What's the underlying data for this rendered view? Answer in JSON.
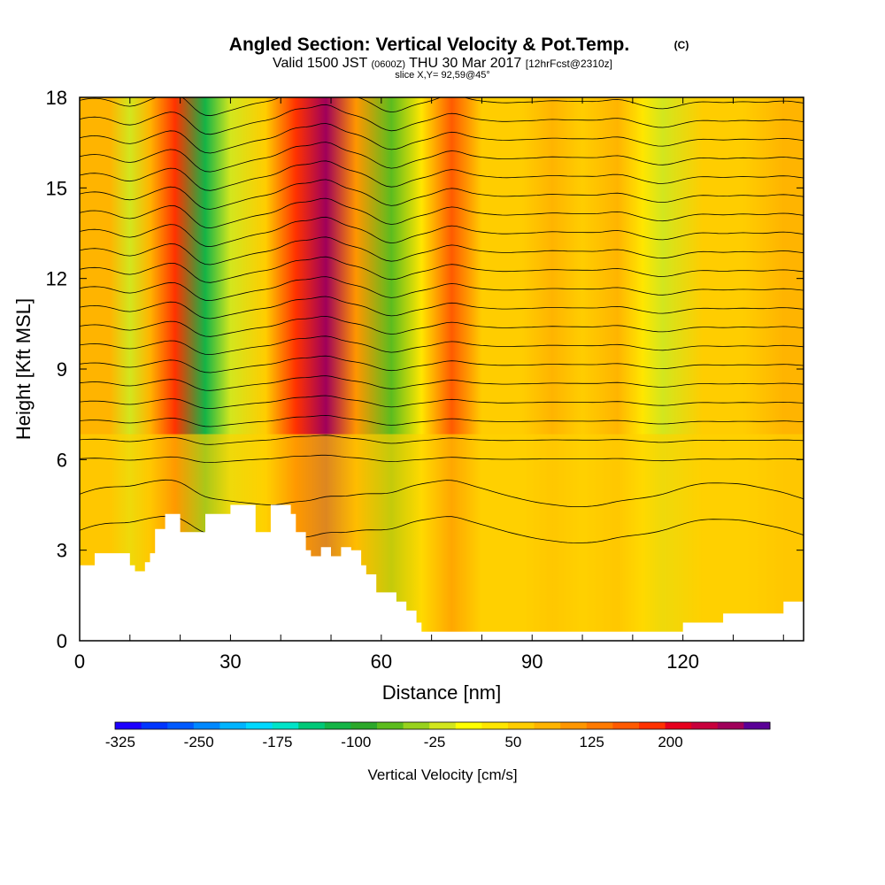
{
  "chart_data": {
    "type": "heatmap",
    "title": "Angled Section: Vertical Velocity & Pot.Temp.",
    "title_unit": "(C)",
    "subtitle_prefix": "Valid 1500 JST",
    "subtitle_utc": "(0600Z)",
    "subtitle_date": "THU 30 Mar 2017",
    "subtitle_fcst": "[12hrFcst@2310z]",
    "slice_label": "slice X,Y= 92,59@45°",
    "xlabel": "Distance [nm]",
    "ylabel": "Height [Kft MSL]",
    "xlim": [
      0,
      144
    ],
    "ylim": [
      0,
      18
    ],
    "x_ticks": [
      "0",
      "30",
      "60",
      "90",
      "120"
    ],
    "y_ticks": [
      "0",
      "3",
      "6",
      "9",
      "12",
      "15",
      "18"
    ],
    "x_tick_values": [
      0,
      30,
      60,
      90,
      120
    ],
    "y_tick_values": [
      0,
      3,
      6,
      9,
      12,
      15,
      18
    ],
    "colorbar": {
      "label": "Vertical Velocity [cm/s]",
      "tick_labels": [
        "-325",
        "-250",
        "-175",
        "-100",
        "-25",
        "50",
        "125",
        "200"
      ],
      "colors": [
        "#1e00ff",
        "#0036ff",
        "#005aff",
        "#0088ff",
        "#00b4ff",
        "#00d8ff",
        "#00e4c8",
        "#00c878",
        "#14b446",
        "#2ca82a",
        "#5cbc1e",
        "#98d21e",
        "#d2e61e",
        "#ffff00",
        "#ffe600",
        "#ffcd00",
        "#ffb400",
        "#ff9600",
        "#ff7a00",
        "#ff5a00",
        "#ff3200",
        "#e6001e",
        "#c8003c",
        "#a0005a",
        "#5a0096"
      ]
    },
    "velocity_bands": [
      {
        "x": 2,
        "value": 60
      },
      {
        "x": 6,
        "value": 40
      },
      {
        "x": 10,
        "value": -60
      },
      {
        "x": 14,
        "value": 50
      },
      {
        "x": 19,
        "value": 140
      },
      {
        "x": 25,
        "value": -150
      },
      {
        "x": 30,
        "value": -60
      },
      {
        "x": 37,
        "value": 20
      },
      {
        "x": 43,
        "value": 160
      },
      {
        "x": 49,
        "value": 220
      },
      {
        "x": 55,
        "value": 80
      },
      {
        "x": 62,
        "value": -110
      },
      {
        "x": 68,
        "value": 10
      },
      {
        "x": 74,
        "value": 120
      },
      {
        "x": 80,
        "value": 30
      },
      {
        "x": 88,
        "value": 20
      },
      {
        "x": 94,
        "value": 40
      },
      {
        "x": 100,
        "value": 30
      },
      {
        "x": 107,
        "value": 60
      },
      {
        "x": 112,
        "value": -10
      },
      {
        "x": 116,
        "value": -60
      },
      {
        "x": 124,
        "value": 30
      },
      {
        "x": 132,
        "value": 30
      },
      {
        "x": 140,
        "value": 40
      }
    ],
    "terrain": {
      "x": [
        0,
        3,
        6,
        10,
        11,
        13,
        14,
        15,
        17,
        19,
        20,
        21,
        24,
        25,
        29,
        30,
        32,
        35,
        38,
        42,
        43,
        45,
        46,
        48,
        50,
        52,
        54,
        56,
        57,
        59,
        62,
        63,
        65,
        67,
        68,
        70,
        75,
        80,
        85,
        90,
        95,
        100,
        105,
        110,
        114,
        120,
        125,
        128,
        131,
        136,
        140,
        144
      ],
      "height": [
        2.5,
        2.9,
        2.9,
        2.5,
        2.3,
        2.6,
        2.9,
        3.7,
        4.2,
        4.2,
        3.6,
        3.6,
        3.6,
        4.2,
        4.2,
        4.5,
        4.5,
        3.6,
        4.5,
        4.2,
        3.6,
        3.0,
        2.8,
        3.1,
        2.8,
        3.1,
        3.0,
        2.5,
        2.2,
        1.6,
        1.6,
        1.3,
        1.0,
        0.6,
        0.3,
        0.3,
        0.3,
        0.3,
        0.3,
        0.3,
        0.3,
        0.3,
        0.3,
        0.3,
        0.3,
        0.6,
        0.6,
        0.9,
        0.9,
        0.9,
        1.3,
        1.3
      ]
    }
  }
}
